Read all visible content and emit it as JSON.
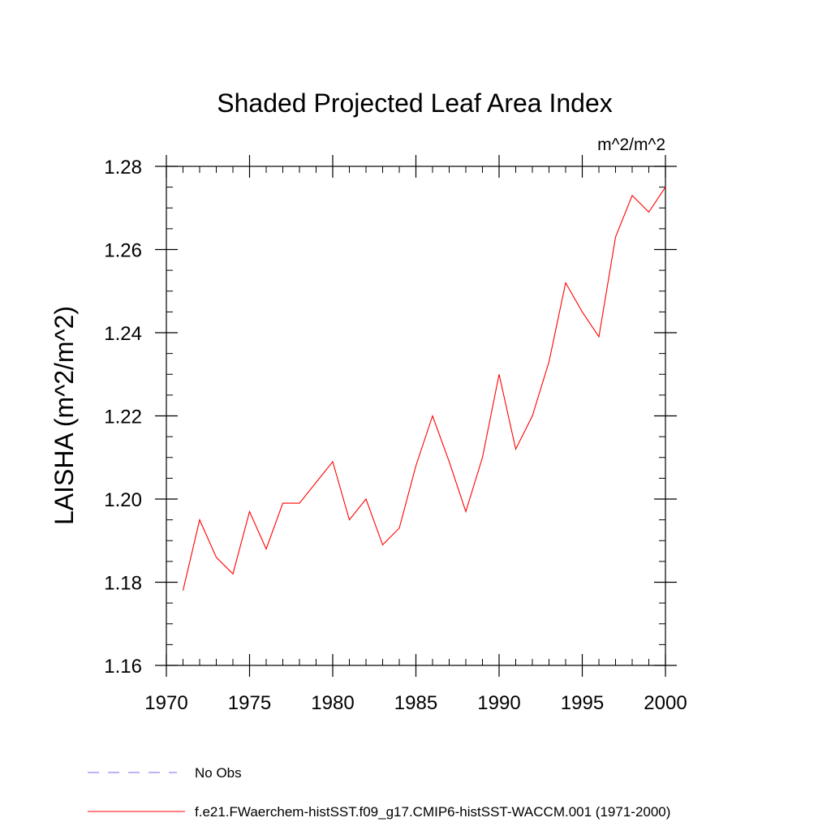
{
  "chart_data": {
    "type": "line",
    "title": "Shaded Projected Leaf Area Index",
    "units": "m^2/m^2",
    "ylabel": "LAISHA  (m^2/m^2)",
    "xlabel": "",
    "xlim": [
      1970,
      2000
    ],
    "ylim": [
      1.16,
      1.28
    ],
    "x_ticks": [
      1970,
      1975,
      1980,
      1985,
      1990,
      1995,
      2000
    ],
    "x_tick_labels": [
      "1970",
      "1975",
      "1980",
      "1985",
      "1990",
      "1995",
      "2000"
    ],
    "y_ticks": [
      1.16,
      1.18,
      1.2,
      1.22,
      1.24,
      1.26,
      1.28
    ],
    "y_tick_labels": [
      "1.16",
      "1.18",
      "1.20",
      "1.22",
      "1.24",
      "1.26",
      "1.28"
    ],
    "x_minor_step": 1,
    "y_minor_step": 0.005,
    "grid": false,
    "legend_position": "bottom",
    "series": [
      {
        "name": "f.e21.FWaerchem-histSST.f09_g17.CMIP6-histSST-WACCM.001 (1971-2000)",
        "color": "#ff0000",
        "style": "solid",
        "x": [
          1971,
          1972,
          1973,
          1974,
          1975,
          1976,
          1977,
          1978,
          1979,
          1980,
          1981,
          1982,
          1983,
          1984,
          1985,
          1986,
          1987,
          1988,
          1989,
          1990,
          1991,
          1992,
          1993,
          1994,
          1995,
          1996,
          1997,
          1998,
          1999,
          2000
        ],
        "y": [
          1.178,
          1.195,
          1.186,
          1.182,
          1.197,
          1.188,
          1.199,
          1.199,
          1.204,
          1.209,
          1.195,
          1.2,
          1.189,
          1.193,
          1.208,
          1.22,
          1.209,
          1.197,
          1.21,
          1.23,
          1.212,
          1.22,
          1.233,
          1.252,
          1.245,
          1.239,
          1.263,
          1.273,
          1.269,
          1.275
        ]
      }
    ],
    "legend": [
      {
        "label": "No Obs",
        "color": "#7b68ee",
        "style": "dashed"
      },
      {
        "label": "f.e21.FWaerchem-histSST.f09_g17.CMIP6-histSST-WACCM.001 (1971-2000)",
        "color": "#ff0000",
        "style": "solid"
      }
    ]
  }
}
